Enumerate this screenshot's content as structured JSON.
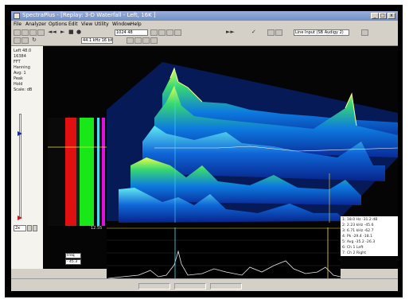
{
  "window": {
    "title": "SpectraPlus - [Replay: 3-D Waterfall - Left, 16K ]",
    "min_icon": "minimize-glyph",
    "max_icon": "maximize-glyph",
    "close_icon": "close-glyph"
  },
  "menu": [
    {
      "label": "File"
    },
    {
      "label": "Analyzer"
    },
    {
      "label": "Options"
    },
    {
      "label": "Edit"
    },
    {
      "label": "View"
    },
    {
      "label": "Utility"
    },
    {
      "label": "Window"
    },
    {
      "label": "Help"
    }
  ],
  "toolbar": {
    "field_a": "1024 48",
    "field_b": "44.1 kHz 16 bit",
    "field_c": "Line Input (SB Audigy 2)",
    "play_icon": "►",
    "record_icon": "●",
    "stop_icon": "■",
    "loop_icon": "↻",
    "check_icon": "✓",
    "rewind_icon": "◄◄",
    "ffwd_icon": "►►"
  },
  "info_panel": {
    "lines": [
      "Left  48.0",
      "16384",
      "FFT",
      "Hanning",
      "Avg: 1",
      "Peak",
      "Hold",
      "Scale: dB"
    ]
  },
  "zoom": {
    "value": "2x"
  },
  "overlay": {
    "time_label": "12.55",
    "readout_a": "Freq",
    "readout_b": "- 45.3"
  },
  "legend": {
    "lines": [
      "1:  18.0 Hz  -31.2 dB",
      "2:  2.23 kHz  -45.6",
      "3:  6.71 kHz  -62.7",
      "4:  Pk  -29.4  -18.1",
      "5:  Avg -35.2  -26.3",
      "6:  Ch 1   Left",
      "7:  Ch 2   Right"
    ]
  },
  "colors": {
    "waterfall_low": "#0a3fc8",
    "waterfall_high": "#e8ff4a",
    "strip_red": "#e01010",
    "strip_green": "#18e818",
    "strip_magenta": "#e010e0",
    "marker_yellow": "#f0e040",
    "marker_cyan": "#40e0f0"
  }
}
